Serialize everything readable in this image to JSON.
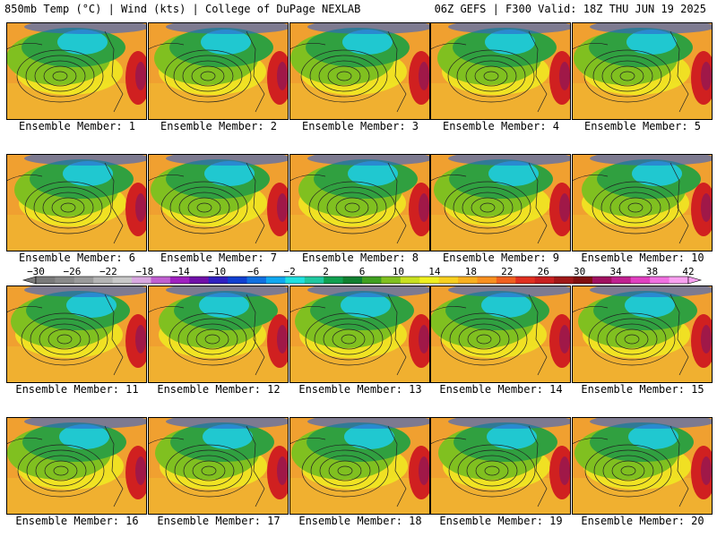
{
  "header": {
    "left": "850mb Temp (°C) | Wind (kts) | College of DuPage NEXLAB",
    "right": "06Z GEFS | F300 Valid: 18Z THU JUN 19 2025"
  },
  "colorbar": {
    "labels": [
      "−30",
      "−26",
      "−22",
      "−18",
      "−14",
      "−10",
      "−6",
      "−2",
      "2",
      "6",
      "10",
      "14",
      "18",
      "22",
      "26",
      "30",
      "34",
      "38",
      "42"
    ],
    "colors": [
      "#7a7a7a",
      "#8a8a8a",
      "#9a9a9a",
      "#b4b4b4",
      "#c8c8c8",
      "#d8a8e0",
      "#c060d0",
      "#a020c0",
      "#7010a8",
      "#3020c0",
      "#1040d0",
      "#1070e0",
      "#10a8f0",
      "#20e0e0",
      "#20c8a0",
      "#10a050",
      "#108030",
      "#40a020",
      "#80c020",
      "#c8e020",
      "#f0f020",
      "#f8d020",
      "#f8b020",
      "#f89020",
      "#f06020",
      "#e03020",
      "#c82020",
      "#a01818",
      "#801010",
      "#a01060",
      "#c02090",
      "#e040c0",
      "#f070e0",
      "#f8a0f0"
    ]
  },
  "members": [
    {
      "label": "Ensemble Member: 1"
    },
    {
      "label": "Ensemble Member: 2"
    },
    {
      "label": "Ensemble Member: 3"
    },
    {
      "label": "Ensemble Member: 4"
    },
    {
      "label": "Ensemble Member: 5"
    },
    {
      "label": "Ensemble Member: 6"
    },
    {
      "label": "Ensemble Member: 7"
    },
    {
      "label": "Ensemble Member: 8"
    },
    {
      "label": "Ensemble Member: 9"
    },
    {
      "label": "Ensemble Member: 10"
    },
    {
      "label": "Ensemble Member: 11"
    },
    {
      "label": "Ensemble Member: 12"
    },
    {
      "label": "Ensemble Member: 13"
    },
    {
      "label": "Ensemble Member: 14"
    },
    {
      "label": "Ensemble Member: 15"
    },
    {
      "label": "Ensemble Member: 16"
    },
    {
      "label": "Ensemble Member: 17"
    },
    {
      "label": "Ensemble Member: 18"
    },
    {
      "label": "Ensemble Member: 19"
    },
    {
      "label": "Ensemble Member: 20"
    }
  ]
}
